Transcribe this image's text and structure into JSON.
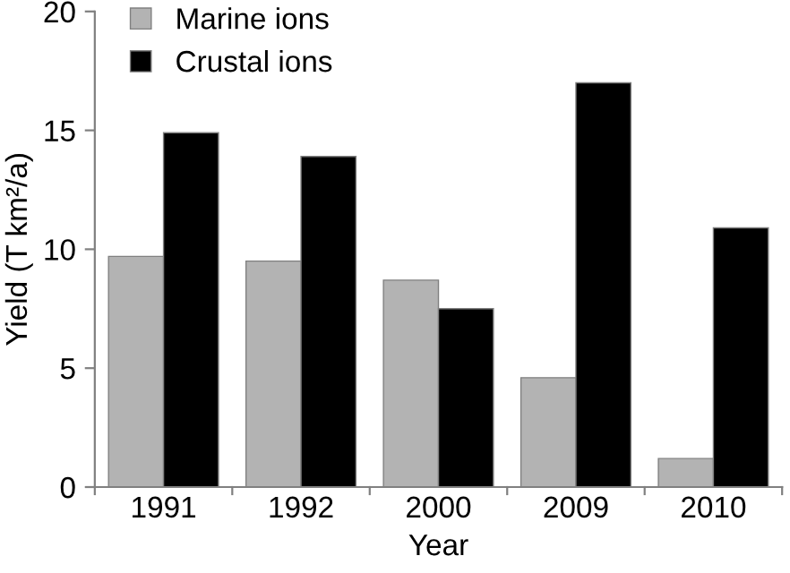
{
  "chart_data": {
    "type": "bar",
    "xlabel": "Year",
    "ylabel": "Yield (T km²/a)",
    "categories": [
      "1991",
      "1992",
      "2000",
      "2009",
      "2010"
    ],
    "series": [
      {
        "name": "Marine ions",
        "color": "#b3b3b3",
        "values": [
          9.7,
          9.5,
          8.7,
          4.6,
          1.2
        ]
      },
      {
        "name": "Crustal ions",
        "color": "#000000",
        "values": [
          14.9,
          13.9,
          7.5,
          17.0,
          10.9
        ]
      }
    ],
    "ylim": [
      0,
      20
    ],
    "yticks": [
      0,
      5,
      10,
      15,
      20
    ],
    "grid": false,
    "legend": "top left"
  }
}
